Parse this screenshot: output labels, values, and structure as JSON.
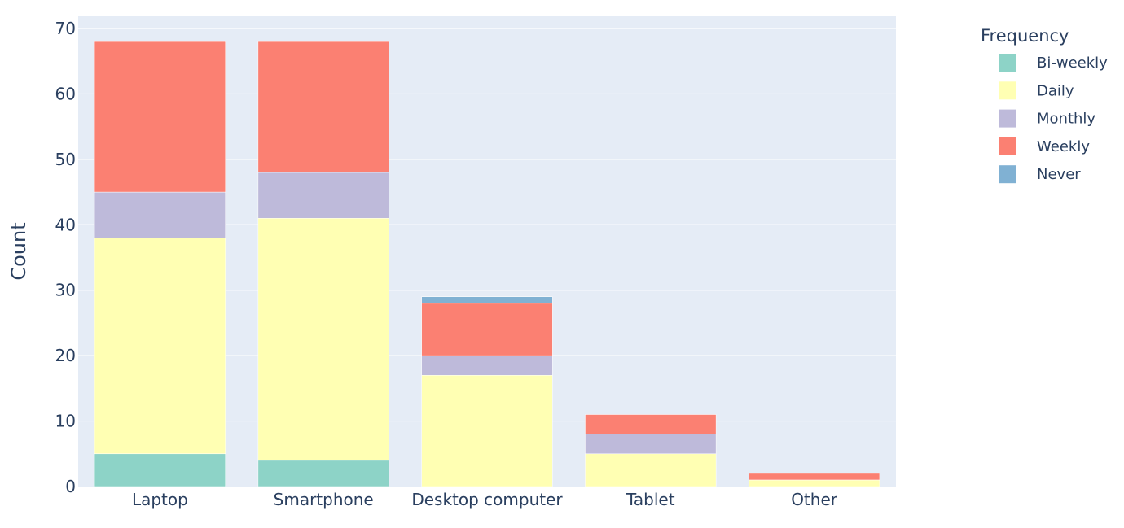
{
  "chart_data": {
    "type": "bar",
    "barmode": "stack",
    "categories": [
      "Laptop",
      "Smartphone",
      "Desktop computer",
      "Tablet",
      "Other"
    ],
    "series": [
      {
        "name": "Bi-weekly",
        "color": "#8dd3c7",
        "values": [
          5,
          4,
          0,
          0,
          0
        ]
      },
      {
        "name": "Daily",
        "color": "#ffffb3",
        "values": [
          33,
          37,
          17,
          5,
          1
        ]
      },
      {
        "name": "Monthly",
        "color": "#bebada",
        "values": [
          7,
          7,
          3,
          3,
          0
        ]
      },
      {
        "name": "Weekly",
        "color": "#fb8072",
        "values": [
          23,
          20,
          8,
          3,
          1
        ]
      },
      {
        "name": "Never",
        "color": "#80b1d3",
        "values": [
          0,
          0,
          1,
          0,
          0
        ]
      }
    ],
    "xlabel": "",
    "ylabel": "Count",
    "ylim": [
      0,
      70
    ],
    "yticks": [
      0,
      10,
      20,
      30,
      40,
      50,
      60,
      70
    ],
    "legend_title": "Frequency",
    "legend_position": "top-right",
    "grid": true,
    "plot_bgcolor": "#e5ecf6"
  }
}
